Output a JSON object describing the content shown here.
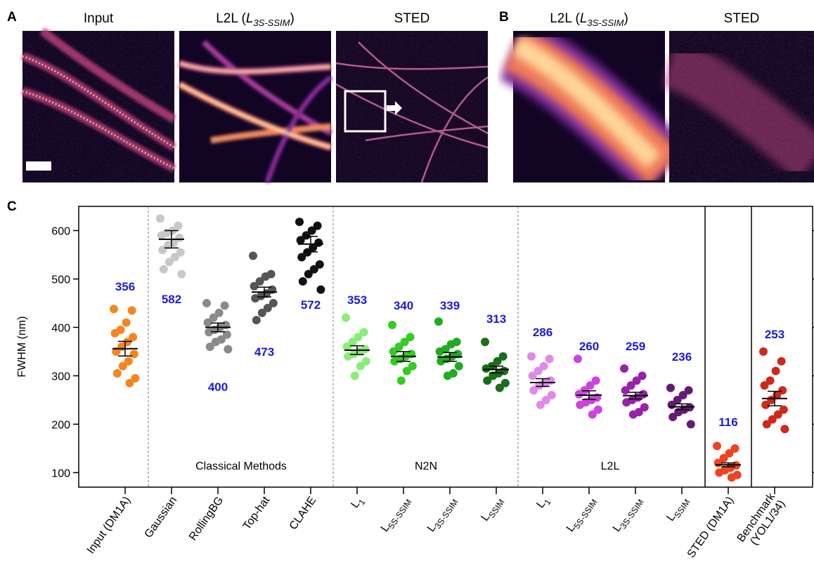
{
  "panels": {
    "a": {
      "letter": "A",
      "titles": [
        {
          "text": "Input"
        },
        {
          "prefix": "L2L (",
          "italic": "L",
          "sub": "3S-SSIM",
          "suffix": ")"
        },
        {
          "text": "STED"
        }
      ]
    },
    "b": {
      "letter": "B",
      "titles": [
        {
          "prefix": "L2L (",
          "italic": "L",
          "sub": "3S-SSIM",
          "suffix": ")"
        },
        {
          "text": "STED"
        }
      ]
    },
    "c": {
      "letter": "C"
    }
  },
  "chart_data": {
    "type": "dot",
    "y_label": "FWHM (nm)",
    "ylim": [
      70,
      650
    ],
    "yticks": [
      100,
      200,
      300,
      400,
      500,
      600
    ],
    "group_labels": [
      "Classical Methods",
      "N2N",
      "L2L"
    ],
    "categories": [
      {
        "text": "Input (DM1A)"
      },
      {
        "text": "Gaussian"
      },
      {
        "text": "RollingBG"
      },
      {
        "text": "Top-hat"
      },
      {
        "text": "CLAHE"
      },
      {
        "text": "L",
        "sub": "1"
      },
      {
        "text": "L",
        "sub": "5S-SSIM"
      },
      {
        "text": "L",
        "sub": "3S-SSIM"
      },
      {
        "text": "L",
        "sub": "SSIM"
      },
      {
        "text": "L",
        "sub": "1"
      },
      {
        "text": "L",
        "sub": "5S-SSIM"
      },
      {
        "text": "L",
        "sub": "3S-SSIM"
      },
      {
        "text": "L",
        "sub": "SSIM"
      },
      {
        "text": "STED (DM1A)"
      },
      {
        "text": "Benchmark",
        "line2": "(YOL1/34)"
      }
    ],
    "groups": [
      {
        "color": "#f5851f",
        "mean": 356,
        "sem": 15,
        "points": [
          438,
          435,
          410,
          395,
          388,
          380,
          370,
          360,
          350,
          345,
          330,
          320,
          305,
          295,
          285
        ]
      },
      {
        "color": "#c8c8c8",
        "mean": 582,
        "sem": 18,
        "points": [
          625,
          610,
          600,
          595,
          590,
          585,
          575,
          570,
          560,
          555,
          545,
          535,
          520,
          510
        ]
      },
      {
        "color": "#8a8a8a",
        "mean": 400,
        "sem": 9,
        "points": [
          450,
          445,
          430,
          420,
          410,
          405,
          400,
          395,
          390,
          385,
          375,
          370,
          360,
          355
        ]
      },
      {
        "color": "#555555",
        "mean": 473,
        "sem": 10,
        "points": [
          548,
          510,
          505,
          495,
          485,
          478,
          470,
          465,
          460,
          450,
          440,
          430,
          415
        ]
      },
      {
        "color": "#111111",
        "mean": 572,
        "sem": 16,
        "points": [
          618,
          610,
          600,
          590,
          580,
          575,
          565,
          555,
          545,
          530,
          520,
          510,
          495,
          478
        ]
      },
      {
        "color": "#88ee77",
        "mean": 353,
        "sem": 9,
        "points": [
          420,
          390,
          380,
          370,
          360,
          355,
          350,
          345,
          340,
          330,
          320,
          300
        ]
      },
      {
        "color": "#33cc22",
        "mean": 340,
        "sem": 10,
        "points": [
          405,
          380,
          370,
          360,
          350,
          345,
          340,
          335,
          330,
          320,
          310,
          290
        ]
      },
      {
        "color": "#22aa22",
        "mean": 339,
        "sem": 9,
        "points": [
          412,
          370,
          365,
          355,
          350,
          345,
          340,
          335,
          330,
          320,
          305,
          300
        ]
      },
      {
        "color": "#1a6e1a",
        "mean": 313,
        "sem": 7,
        "points": [
          370,
          340,
          330,
          320,
          315,
          310,
          305,
          300,
          290,
          285,
          275
        ]
      },
      {
        "color": "#e08ae8",
        "mean": 286,
        "sem": 8,
        "points": [
          340,
          335,
          320,
          310,
          300,
          290,
          285,
          280,
          270,
          260,
          250,
          240
        ]
      },
      {
        "color": "#cc44dd",
        "mean": 260,
        "sem": 9,
        "points": [
          335,
          290,
          280,
          270,
          262,
          255,
          250,
          245,
          240,
          230,
          220
        ]
      },
      {
        "color": "#9922aa",
        "mean": 259,
        "sem": 7,
        "points": [
          315,
          300,
          290,
          280,
          270,
          262,
          255,
          250,
          245,
          235,
          225,
          220
        ]
      },
      {
        "color": "#661a77",
        "mean": 236,
        "sem": 6,
        "points": [
          275,
          270,
          260,
          250,
          240,
          235,
          230,
          225,
          215,
          200
        ]
      },
      {
        "color": "#ee4422",
        "mean": 116,
        "sem": 4,
        "points": [
          155,
          150,
          140,
          130,
          120,
          115,
          110,
          105,
          100,
          95,
          90
        ]
      },
      {
        "color": "#cc2a1a",
        "mean": 253,
        "sem": 15,
        "points": [
          350,
          330,
          310,
          290,
          280,
          270,
          260,
          250,
          240,
          230,
          220,
          210,
          200,
          190
        ]
      }
    ],
    "mean_label_color": "#1a1adb"
  }
}
